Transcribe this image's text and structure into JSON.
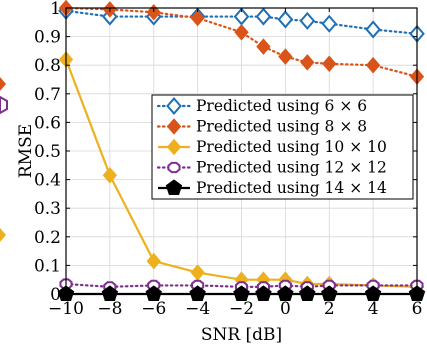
{
  "chart_data": {
    "type": "line",
    "xlabel": "SNR [dB]",
    "ylabel": "RMSE",
    "xlim": [
      -10,
      6
    ],
    "ylim": [
      0,
      1
    ],
    "xticks": [
      "−10",
      "−8",
      "−6",
      "−4",
      "−2",
      "0",
      "2",
      "4",
      "6"
    ],
    "yticks": [
      "0",
      "0.1",
      "0.2",
      "0.3",
      "0.4",
      "0.5",
      "0.6",
      "0.7",
      "0.8",
      "0.9",
      "1"
    ],
    "grid": true,
    "legend_position": "right",
    "series": [
      {
        "name": "Predicted using 6 × 6",
        "color": "#1f6fb4",
        "line": "dotted",
        "marker": "diamond-open",
        "x": [
          -10,
          -8,
          -6,
          -4,
          -2,
          -1,
          0,
          1,
          2,
          4,
          6
        ],
        "y": [
          0.99,
          0.97,
          0.97,
          0.97,
          0.97,
          0.97,
          0.96,
          0.955,
          0.945,
          0.925,
          0.91
        ]
      },
      {
        "name": "Predicted using 8 × 8",
        "color": "#d9541a",
        "line": "dotted",
        "marker": "diamond-filled",
        "x": [
          -10,
          -8,
          -6,
          -4,
          -2,
          -1,
          0,
          1,
          2,
          4,
          6
        ],
        "y": [
          1.0,
          0.995,
          0.985,
          0.965,
          0.915,
          0.865,
          0.83,
          0.81,
          0.805,
          0.8,
          0.76
        ]
      },
      {
        "name": "Predicted using 10 × 10",
        "color": "#edb120",
        "line": "solid",
        "marker": "diamond-filled",
        "x": [
          -10,
          -8,
          -6,
          -4,
          -2,
          -1,
          0,
          1,
          2,
          4,
          6
        ],
        "y": [
          0.82,
          0.415,
          0.115,
          0.075,
          0.05,
          0.05,
          0.05,
          0.035,
          0.035,
          0.03,
          0.025
        ]
      },
      {
        "name": "Predicted using 12 × 12",
        "color": "#7e2f8e",
        "line": "dotted",
        "marker": "circle-open",
        "x": [
          -10,
          -8,
          -6,
          -4,
          -2,
          -1,
          0,
          1,
          2,
          4,
          6
        ],
        "y": [
          0.035,
          0.025,
          0.03,
          0.03,
          0.025,
          0.025,
          0.03,
          0.025,
          0.03,
          0.03,
          0.03
        ]
      },
      {
        "name": "Predicted using 14 × 14",
        "color": "#000000",
        "line": "solid",
        "marker": "pentagon-filled",
        "x": [
          -10,
          -8,
          -6,
          -4,
          -2,
          -1,
          0,
          1,
          2,
          4,
          6
        ],
        "y": [
          0.0,
          0.0,
          0.0,
          0.0,
          0.0,
          0.0,
          0.0,
          0.0,
          0.0,
          0.0,
          0.0
        ]
      }
    ]
  }
}
